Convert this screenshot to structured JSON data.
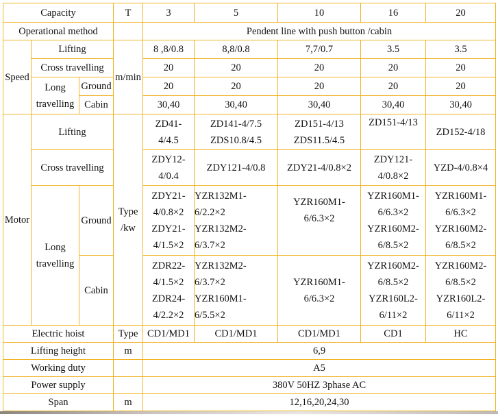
{
  "table": {
    "border_color": "#f0b323",
    "capacity": {
      "label": "Capacity",
      "unit": "T",
      "values": [
        "3",
        "5",
        "10",
        "16",
        "20"
      ]
    },
    "operational_method": {
      "label": "Operational method",
      "value": "Pendent line with push button /cabin"
    },
    "speed": {
      "label": "Speed",
      "unit": "m/min",
      "lifting": {
        "label": "Lifting",
        "values": [
          "8 ,8/0.8",
          "8,8/0.8",
          "7,7/0.7",
          "3.5",
          "3.5"
        ]
      },
      "cross": {
        "label": "Cross travelling",
        "values": [
          "20",
          "20",
          "20",
          "20",
          "20"
        ]
      },
      "long_label": [
        "Long",
        "travelling"
      ],
      "ground": {
        "label": "Ground",
        "values": [
          "20",
          "20",
          "20",
          "20",
          "20"
        ]
      },
      "cabin": {
        "label": "Cabin",
        "values": [
          "30,40",
          "30,40",
          "30,40",
          "30,40",
          "30,40"
        ]
      }
    },
    "motor": {
      "label": "Motor",
      "unit": [
        "Type",
        "/kw"
      ],
      "lifting": {
        "label": "Lifting",
        "values": [
          [
            "ZD41-",
            "4/4.5"
          ],
          [
            "ZD141-4/7.5",
            "ZDS10.8/4.5"
          ],
          [
            "ZD151-4/13",
            "ZDS11.5/4.5"
          ],
          [
            "ZD151-4/13"
          ],
          [
            "ZD152-4/18"
          ]
        ]
      },
      "cross": {
        "label": "Cross travelling",
        "values": [
          [
            "ZDY12-",
            "4/0.4"
          ],
          [
            "ZDY121-4/0.8"
          ],
          [
            "ZDY21-4/0.8×2"
          ],
          [
            "ZDY121-",
            "4/0.8×2"
          ],
          [
            "YZD-4/0.8×4"
          ]
        ]
      },
      "long_label": [
        "Long",
        "travelling"
      ],
      "ground": {
        "label": "Ground",
        "values": [
          [
            "ZDY21-",
            "4/0.8×2",
            "ZDY21-",
            "4/1.5×2"
          ],
          [
            "YZR132M1-",
            "6/2.2×2",
            "YZR132M2-",
            "6/3.7×2"
          ],
          [
            "YZR160M1-",
            "6/6.3×2"
          ],
          [
            "YZR160M1-",
            "6/6.3×2",
            "YZR160M2-",
            "6/8.5×2"
          ],
          [
            "YZR160M1-",
            "6/6.3×2",
            "YZR160M2-",
            "6/8.5×2"
          ]
        ]
      },
      "cabin": {
        "label": "Cabin",
        "values": [
          [
            "ZDR22-",
            "4/1.5×2",
            "ZDR24-",
            "4/2.2×2"
          ],
          [
            "YZR132M2-",
            "6/3.7×2",
            "YZR160M1-",
            "6/5.5×2"
          ],
          [
            "YZR160M1-",
            "6/6.3×2"
          ],
          [
            "YZR160M2-",
            "6/8.5×2",
            "YZR160L2-",
            "6/11×2"
          ],
          [
            "YZR160M2-",
            "6/8.5×2",
            "YZR160L2-",
            "6/11×2"
          ]
        ]
      }
    },
    "electric_hoist": {
      "label": "Electric hoist",
      "unit": "Type",
      "values": [
        "CD1/MD1",
        "CD1/MD1",
        "CD1/MD1",
        "CD1",
        "HC"
      ]
    },
    "lifting_height": {
      "label": "Lifting height",
      "unit": "m",
      "value": "6,9"
    },
    "working_duty": {
      "label": "Working duty",
      "value": "A5"
    },
    "power_supply": {
      "label": "Power supply",
      "value": "380V 50HZ 3phase AC"
    },
    "span": {
      "label": "Span",
      "unit": "m",
      "value": "12,16,20,24,30"
    }
  }
}
